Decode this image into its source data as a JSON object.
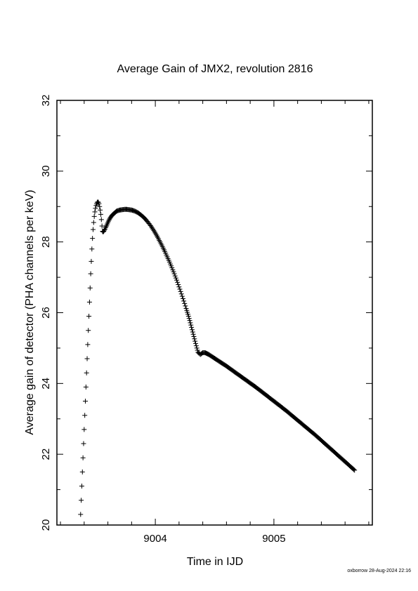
{
  "chart_data": {
    "type": "scatter",
    "title": "Average Gain of JMX2, revolution 2816",
    "xlabel": "Time in IJD",
    "ylabel": "Average gain of detector (PHA channels per keV)",
    "xlim": [
      9003.17,
      9005.83
    ],
    "ylim": [
      20,
      32
    ],
    "x_ticks": [
      9004,
      9005
    ],
    "x_tick_labels": [
      "9004",
      "9005"
    ],
    "y_ticks": [
      20,
      22,
      24,
      26,
      28,
      30,
      32
    ],
    "y_tick_labels": [
      "20",
      "22",
      "24",
      "26",
      "28",
      "30",
      "32"
    ],
    "grid": false,
    "legend": "none",
    "marker": "+",
    "color": "#000000",
    "series": [
      {
        "x": [
          9003.37,
          9003.375,
          9003.38,
          9003.385,
          9003.39,
          9003.395,
          9003.4,
          9003.405,
          9003.41,
          9003.415,
          9003.42,
          9003.425,
          9003.43,
          9003.435,
          9003.44,
          9003.445,
          9003.45,
          9003.455,
          9003.46,
          9003.465,
          9003.47,
          9003.475,
          9003.48,
          9003.485,
          9003.49,
          9003.495,
          9003.5,
          9003.505,
          9003.51,
          9003.515,
          9003.52,
          9003.525,
          9003.53,
          9003.535,
          9003.54,
          9003.545,
          9003.55,
          9003.555,
          9003.56,
          9003.565,
          9003.57,
          9003.575,
          9003.58,
          9003.59,
          9003.6,
          9003.61,
          9003.62,
          9003.63,
          9003.64,
          9003.65,
          9003.66,
          9003.67,
          9003.68,
          9003.7,
          9003.72,
          9003.74,
          9003.76,
          9003.78,
          9003.8,
          9003.82,
          9003.84,
          9003.86,
          9003.88,
          9003.9,
          9003.92,
          9003.94,
          9003.96,
          9003.98,
          9004.0,
          9004.02,
          9004.04,
          9004.06,
          9004.08,
          9004.1,
          9004.12,
          9004.14,
          9004.16,
          9004.18,
          9004.2,
          9004.22,
          9004.24,
          9004.26,
          9004.27,
          9004.28,
          9004.29,
          9004.3,
          9004.31,
          9004.32,
          9004.33,
          9004.34,
          9004.35,
          9004.36,
          9004.38,
          9004.4,
          9004.42,
          9004.45,
          9004.5,
          9004.55,
          9004.6,
          9004.65,
          9004.7,
          9004.75,
          9004.8,
          9004.85,
          9004.9,
          9004.95,
          9005.0,
          9005.05,
          9005.1,
          9005.15,
          9005.2,
          9005.25,
          9005.3,
          9005.35,
          9005.4,
          9005.45,
          9005.5,
          9005.55,
          9005.6,
          9005.65,
          9005.68
        ],
        "y": [
          20.3,
          20.7,
          21.1,
          21.5,
          21.9,
          22.3,
          22.7,
          23.1,
          23.5,
          23.9,
          24.3,
          24.7,
          25.1,
          25.5,
          25.9,
          26.3,
          26.7,
          27.1,
          27.45,
          27.8,
          28.1,
          28.35,
          28.55,
          28.72,
          28.85,
          28.95,
          29.03,
          29.08,
          29.12,
          29.13,
          29.12,
          29.08,
          29.0,
          28.9,
          28.78,
          28.63,
          28.45,
          28.3,
          28.28,
          28.3,
          28.33,
          28.36,
          28.4,
          28.47,
          28.55,
          28.62,
          28.68,
          28.73,
          28.77,
          28.8,
          28.83,
          28.86,
          28.88,
          28.9,
          28.91,
          28.92,
          28.92,
          28.91,
          28.9,
          28.88,
          28.85,
          28.81,
          28.76,
          28.7,
          28.63,
          28.55,
          28.46,
          28.36,
          28.25,
          28.13,
          28.0,
          27.87,
          27.73,
          27.58,
          27.43,
          27.27,
          27.1,
          26.92,
          26.73,
          26.53,
          26.33,
          26.12,
          26.01,
          25.9,
          25.78,
          25.65,
          25.52,
          25.39,
          25.26,
          25.13,
          25.0,
          24.88,
          24.82,
          24.87,
          24.87,
          24.82,
          24.71,
          24.6,
          24.49,
          24.37,
          24.25,
          24.13,
          24.01,
          23.89,
          23.76,
          23.63,
          23.5,
          23.37,
          23.24,
          23.1,
          22.96,
          22.82,
          22.68,
          22.54,
          22.39,
          22.24,
          22.09,
          21.94,
          21.79,
          21.64,
          21.55
        ]
      }
    ]
  },
  "footer_text": "oxborrow 28-Aug-2024 22:16"
}
